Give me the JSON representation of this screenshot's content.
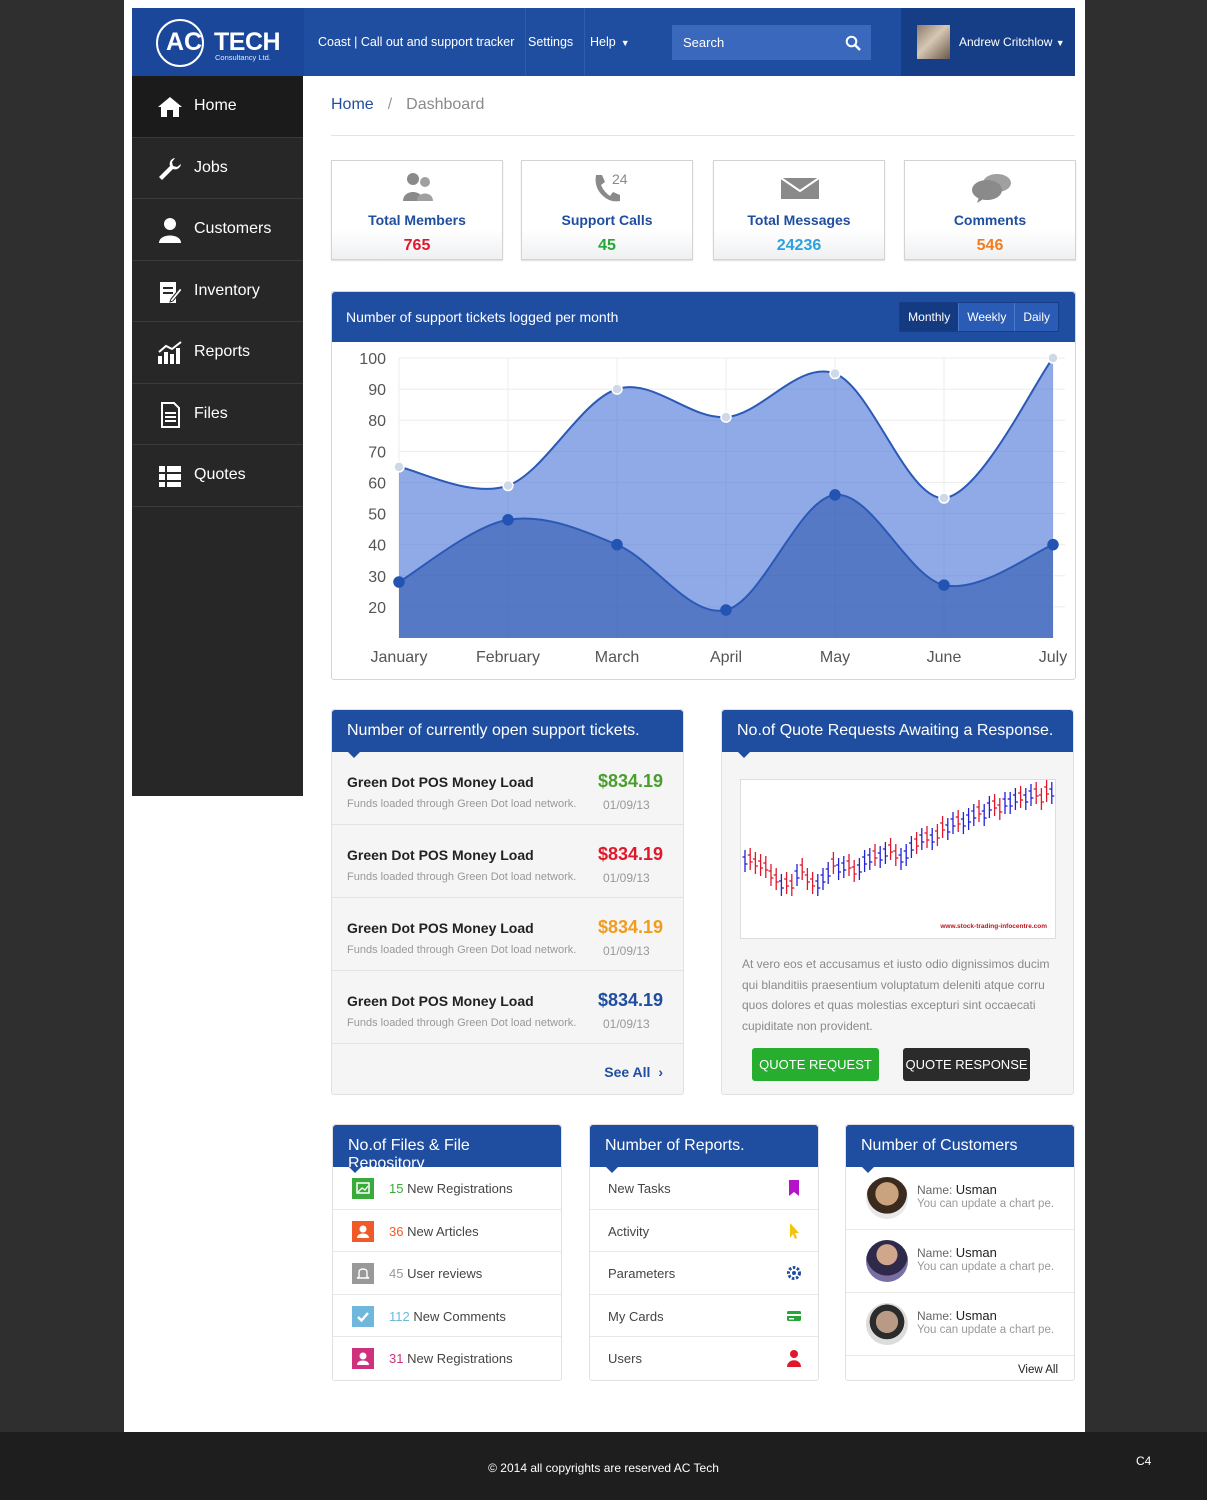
{
  "brand": {
    "ac": "AC",
    "tech": "TECH",
    "sub": "Consultancy Ltd."
  },
  "topnav": {
    "tracker": "Coast | Call out and support tracker",
    "settings": "Settings",
    "help": "Help",
    "help_caret": "▼"
  },
  "search": {
    "placeholder": "Search"
  },
  "user": {
    "name": "Andrew Critchlow",
    "caret": "▼"
  },
  "sidebar": {
    "items": [
      {
        "label": "Home",
        "icon": "home-icon",
        "active": true
      },
      {
        "label": "Jobs",
        "icon": "wrench-icon"
      },
      {
        "label": "Customers",
        "icon": "user-icon"
      },
      {
        "label": "Inventory",
        "icon": "clipboard-icon"
      },
      {
        "label": "Reports",
        "icon": "chart-icon"
      },
      {
        "label": "Files",
        "icon": "file-icon"
      },
      {
        "label": "Quotes",
        "icon": "list-icon"
      }
    ]
  },
  "breadcrumb": {
    "home": "Home",
    "sep": "/",
    "current": "Dashboard"
  },
  "stats": [
    {
      "label": "Total Members",
      "value": "765",
      "color": "#e0182c",
      "icon": "users-icon"
    },
    {
      "label": "Support Calls",
      "value": "45",
      "color": "#27a637",
      "icon": "phone-icon",
      "badge": "24"
    },
    {
      "label": "Total Messages",
      "value": "24236",
      "color": "#2aa1e0",
      "icon": "envelope-icon"
    },
    {
      "label": "Comments",
      "value": "546",
      "color": "#f37c1c",
      "icon": "comments-icon"
    }
  ],
  "chart_panel": {
    "title": "Number of support tickets logged per month",
    "tabs": [
      "Monthly",
      "Weekly",
      "Daily"
    ],
    "active_tab": "Monthly"
  },
  "chart_data": {
    "type": "area",
    "categories": [
      "January",
      "February",
      "March",
      "April",
      "May",
      "June",
      "July"
    ],
    "ylim": [
      10,
      100
    ],
    "yticks": [
      100,
      90,
      80,
      70,
      60,
      50,
      40,
      30,
      20
    ],
    "grid": true,
    "series": [
      {
        "values": [
          65,
          59,
          90,
          81,
          95,
          55,
          100
        ],
        "color": "#5b83d6"
      },
      {
        "values": [
          28,
          48,
          40,
          19,
          56,
          27,
          40
        ],
        "color": "#4a6fc2"
      }
    ]
  },
  "open_tickets": {
    "title": "Number of currently open support tickets.",
    "items": [
      {
        "title": "Green Dot POS Money Load",
        "desc": "Funds loaded through Green Dot load network.",
        "amount": "$834.19",
        "date": "01/09/13",
        "color": "#4a9e2e"
      },
      {
        "title": "Green Dot POS Money Load",
        "desc": "Funds loaded through Green Dot load network.",
        "amount": "$834.19",
        "date": "01/09/13",
        "color": "#e0182c"
      },
      {
        "title": "Green Dot POS Money Load",
        "desc": "Funds loaded through Green Dot load network.",
        "amount": "$834.19",
        "date": "01/09/13",
        "color": "#f39c1c"
      },
      {
        "title": "Green Dot POS Money Load",
        "desc": "Funds loaded through Green Dot load network.",
        "amount": "$834.19",
        "date": "01/09/13",
        "color": "#1f4ea1"
      }
    ],
    "see_all": "See All",
    "see_all_chevron": "›"
  },
  "quotes": {
    "title": "No.of Quote Requests Awaiting a Response.",
    "image_credit": "www.stock-trading-infocentre.com",
    "text": "At vero eos et accusamus et iusto odio dignissimos ducim qui blanditiis praesentium voluptatum deleniti atque corru quos dolores et quas molestias excepturi sint occaecati cupiditate non provident.",
    "request_btn": "QUOTE REQUEST",
    "response_btn": "QUOTE RESPONSE"
  },
  "files": {
    "title": "No.of Files & File Repository",
    "items": [
      {
        "count": "15",
        "label": "New Registrations",
        "color": "#3aaa3a",
        "icon": "image-icon"
      },
      {
        "count": "36",
        "label": "New Articles",
        "color": "#f05a28",
        "icon": "user-icon"
      },
      {
        "count": "45",
        "label": "User reviews",
        "color": "#999999",
        "icon": "bell-icon"
      },
      {
        "count": "112",
        "label": "New Comments",
        "color": "#6fb8dc",
        "icon": "check-icon"
      },
      {
        "count": "31",
        "label": "New Registrations",
        "color": "#d0317e",
        "icon": "user-icon"
      }
    ]
  },
  "reports": {
    "title": "Number of Reports.",
    "items": [
      {
        "label": "New Tasks",
        "color": "#b413c9",
        "icon": "bookmark-icon"
      },
      {
        "label": "Activity",
        "color": "#f1c40f",
        "icon": "cursor-icon"
      },
      {
        "label": "Parameters",
        "color": "#1f4ea1",
        "icon": "gear-icon"
      },
      {
        "label": "My Cards",
        "color": "#27a637",
        "icon": "card-icon"
      },
      {
        "label": "Users",
        "color": "#e0182c",
        "icon": "user-icon"
      }
    ]
  },
  "customers": {
    "title": "Number of Customers",
    "items": [
      {
        "name_label": "Name:",
        "name": "Usman",
        "desc": "You can update a chart pe."
      },
      {
        "name_label": "Name:",
        "name": "Usman",
        "desc": "You can update a chart pe."
      },
      {
        "name_label": "Name:",
        "name": "Usman",
        "desc": "You can update a chart pe."
      }
    ],
    "view_all": "View All"
  },
  "footer": {
    "copyright": "© 2014 all copyrights are reserved AC Tech",
    "code": "C4"
  }
}
